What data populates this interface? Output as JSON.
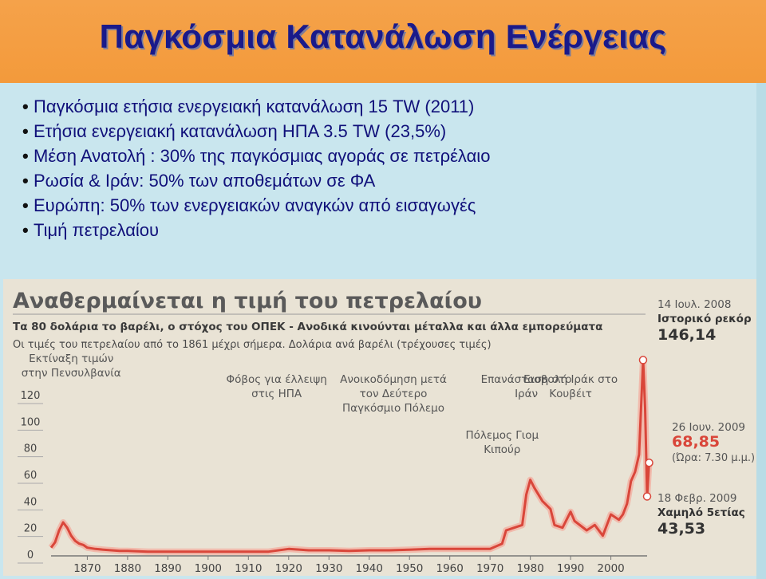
{
  "slide": {
    "title": "Παγκόσμια Κατανάλωση Ενέργειας",
    "bullets": [
      "Παγκόσμια ετήσια ενεργειακή κατανάλωση 15 TW (2011)",
      "Ετήσια ενεργειακή κατανάλωση ΗΠΑ 3.5 TW (23,5%)",
      "Μέση Ανατολή : 30% της παγκόσμιας αγοράς σε πετρέλαιο",
      "Ρωσία & Ιράν: 50% των αποθεμάτων σε ΦΑ",
      "Ευρώπη: 50% των ενεργειακών αναγκών από εισαγωγές",
      "Τιμή πετρελαίου"
    ]
  },
  "chart_data": {
    "type": "line",
    "title": "Αναθερμαίνεται η τιμή του πετρελαίου",
    "subtitle": "Τα 80 δολάρια το βαρέλι, ο στόχος του ΟΠΕΚ - Ανοδικά κινούνται μέταλλα και άλλα εμπορεύματα",
    "note": "Οι τιμές του πετρελαίου από το 1861 μέχρι σήμερα. Δολάρια ανά βαρέλι (τρέχουσες τιμές)",
    "xlabel": "",
    "ylabel": "",
    "xlim": [
      1861,
      2009
    ],
    "ylim": [
      0,
      150
    ],
    "x_ticks": [
      1870,
      1880,
      1890,
      1900,
      1910,
      1920,
      1930,
      1940,
      1950,
      1960,
      1970,
      1980,
      1990,
      2000
    ],
    "y_ticks": [
      0,
      20,
      40,
      60,
      80,
      100,
      120
    ],
    "grid": false,
    "series": [
      {
        "x": [
          1861,
          1862,
          1863,
          1864,
          1865,
          1866,
          1867,
          1868,
          1869,
          1870,
          1872,
          1874,
          1876,
          1878,
          1880,
          1885,
          1890,
          1895,
          1900,
          1905,
          1910,
          1915,
          1920,
          1925,
          1930,
          1935,
          1940,
          1945,
          1950,
          1955,
          1960,
          1965,
          1970,
          1973,
          1974,
          1976,
          1978,
          1979,
          1980,
          1981,
          1983,
          1985,
          1986,
          1988,
          1990,
          1991,
          1994,
          1996,
          1998,
          2000,
          2002,
          2003,
          2004,
          2005,
          2006,
          2007,
          2008,
          2008.5,
          2009,
          2009.5
        ],
        "y": [
          5,
          9,
          18,
          24,
          20,
          14,
          10,
          8,
          7,
          5,
          4,
          3.5,
          3,
          2.5,
          2.5,
          2,
          2,
          2,
          2,
          2,
          2,
          2,
          4,
          3,
          3,
          2.5,
          3,
          3,
          3.5,
          4,
          4,
          4,
          4,
          8,
          18,
          20,
          22,
          45,
          56,
          50,
          40,
          34,
          22,
          20,
          32,
          25,
          18,
          22,
          14,
          30,
          26,
          30,
          38,
          55,
          62,
          75,
          146.14,
          110,
          43.53,
          68.85
        ],
        "color": "#d9463a"
      }
    ],
    "annotations": [
      {
        "x": 1866,
        "text": "Εκτίναξη τιμών στην Πενσυλβανία"
      },
      {
        "x": 1917,
        "text": "Φόβος για έλλειψη στις ΗΠΑ"
      },
      {
        "x": 1946,
        "text": "Ανοικοδόμηση μετά τον Δεύτερο Παγκόσμιο Πόλεμο"
      },
      {
        "x": 1979,
        "text": "Επανάσταση στο Ιράν"
      },
      {
        "x": 1973,
        "text": "Πόλεμος Γιομ Κιπούρ"
      },
      {
        "x": 1990,
        "text": "Εισβολή Ιράκ στο Κουβέιτ"
      }
    ],
    "callouts": [
      {
        "date": "14 Ιουλ. 2008",
        "label": "Ιστορικό ρεκόρ",
        "value": "146,14"
      },
      {
        "date": "26 Ιουν. 2009",
        "label": "(Ώρα: 7.30 μ.μ.)",
        "value": "68,85"
      },
      {
        "date": "18 Φεβρ. 2009",
        "label": "Χαμηλό 5ετίας",
        "value": "43,53"
      }
    ]
  }
}
